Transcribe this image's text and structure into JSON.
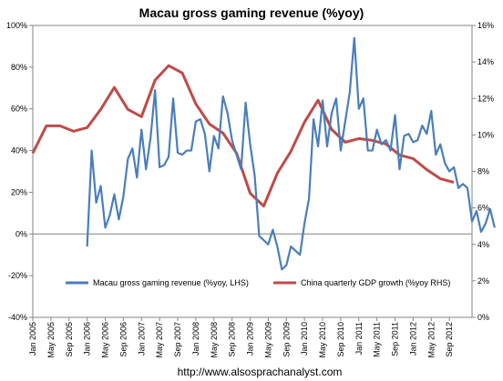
{
  "chart_data": {
    "type": "line",
    "title": "Macau gross gaming revenue (%yoy)",
    "source": "http://www.alsosprachanalyst.com",
    "colors": {
      "gaming": "#4a7ebb",
      "gdp": "#be4b48",
      "zero_line": "#808080"
    },
    "x_tick_labels": [
      "Jan 2005",
      "May 2005",
      "Sep 2005",
      "Jan 2006",
      "May 2006",
      "Sep 2006",
      "Jan 2007",
      "May 2007",
      "Sep 2007",
      "Jan 2008",
      "May 2008",
      "Sep 2008",
      "Jan 2009",
      "May 2009",
      "Sep 2009",
      "Jan 2010",
      "May 2010",
      "Sep 2010",
      "Jan 2011",
      "May 2011",
      "Sep 2011",
      "Jan 2012",
      "May 2012",
      "Sep 2012"
    ],
    "x_range": [
      "Jan 2005",
      "Feb 2013"
    ],
    "y_left": {
      "min": -40,
      "max": 100,
      "tick_labels": [
        "-40%",
        "-20%",
        "0%",
        "20%",
        "40%",
        "60%",
        "80%",
        "100%"
      ],
      "tick_values": [
        -40,
        -20,
        0,
        20,
        40,
        60,
        80,
        100
      ]
    },
    "y_right": {
      "min": 0,
      "max": 16,
      "tick_labels": [
        "0%",
        "2%",
        "4%",
        "6%",
        "8%",
        "10%",
        "12%",
        "14%",
        "16%"
      ],
      "tick_values": [
        0,
        2,
        4,
        6,
        8,
        10,
        12,
        14,
        16
      ]
    },
    "series": [
      {
        "name": "Macau gross gaming revenue (%yoy, LHS)",
        "axis": "left",
        "points": [
          [
            "Jan 2006",
            -6
          ],
          [
            "Feb 2006",
            40
          ],
          [
            "Mar 2006",
            15
          ],
          [
            "Apr 2006",
            23
          ],
          [
            "May 2006",
            3
          ],
          [
            "Jun 2006",
            9
          ],
          [
            "Jul 2006",
            19
          ],
          [
            "Aug 2006",
            7
          ],
          [
            "Sep 2006",
            18
          ],
          [
            "Oct 2006",
            36
          ],
          [
            "Nov 2006",
            41
          ],
          [
            "Dec 2006",
            27
          ],
          [
            "Jan 2007",
            50
          ],
          [
            "Feb 2007",
            31
          ],
          [
            "Mar 2007",
            46
          ],
          [
            "Apr 2007",
            69
          ],
          [
            "May 2007",
            32
          ],
          [
            "Jun 2007",
            33
          ],
          [
            "Jul 2007",
            37
          ],
          [
            "Aug 2007",
            65
          ],
          [
            "Sep 2007",
            39
          ],
          [
            "Oct 2007",
            38
          ],
          [
            "Nov 2007",
            40
          ],
          [
            "Dec 2007",
            40
          ],
          [
            "Jan 2008",
            54
          ],
          [
            "Feb 2008",
            55
          ],
          [
            "Mar 2008",
            48
          ],
          [
            "Apr 2008",
            30
          ],
          [
            "May 2008",
            47
          ],
          [
            "Jun 2008",
            41
          ],
          [
            "Jul 2008",
            66
          ],
          [
            "Aug 2008",
            58
          ],
          [
            "Sep 2008",
            45
          ],
          [
            "Oct 2008",
            38
          ],
          [
            "Nov 2008",
            31
          ],
          [
            "Dec 2008",
            63
          ],
          [
            "Jan 2009",
            43
          ],
          [
            "Feb 2009",
            28
          ],
          [
            "Mar 2009",
            -1
          ],
          [
            "Apr 2009",
            -3
          ],
          [
            "May 2009",
            -5
          ],
          [
            "Jun 2009",
            2
          ],
          [
            "Jul 2009",
            -6
          ],
          [
            "Aug 2009",
            -17
          ],
          [
            "Sep 2009",
            -15
          ],
          [
            "Oct 2009",
            -6
          ],
          [
            "Nov 2009",
            -8
          ],
          [
            "Dec 2009",
            -10
          ],
          [
            "Jan 2010",
            5
          ],
          [
            "Feb 2010",
            17
          ],
          [
            "Mar 2010",
            55
          ],
          [
            "Apr 2010",
            42
          ],
          [
            "May 2010",
            64
          ],
          [
            "Jun 2010",
            42
          ],
          [
            "Jul 2010",
            58
          ],
          [
            "Aug 2010",
            65
          ],
          [
            "Sep 2010",
            40
          ],
          [
            "Oct 2010",
            54
          ],
          [
            "Nov 2010",
            68
          ],
          [
            "Dec 2010",
            94
          ],
          [
            "Jan 2011",
            60
          ],
          [
            "Feb 2011",
            65
          ],
          [
            "Mar 2011",
            40
          ],
          [
            "Apr 2011",
            40
          ],
          [
            "May 2011",
            50
          ],
          [
            "Jun 2011",
            43
          ],
          [
            "Jul 2011",
            45
          ],
          [
            "Aug 2011",
            40
          ],
          [
            "Sep 2011",
            57
          ],
          [
            "Oct 2011",
            31
          ],
          [
            "Nov 2011",
            47
          ],
          [
            "Dec 2011",
            48
          ],
          [
            "Jan 2012",
            44
          ],
          [
            "Feb 2012",
            45
          ],
          [
            "Mar 2012",
            52
          ],
          [
            "Apr 2012",
            48
          ],
          [
            "May 2012",
            59
          ],
          [
            "Jun 2012",
            38
          ],
          [
            "Jul 2012",
            43
          ],
          [
            "Aug 2012",
            34
          ],
          [
            "Sep 2012",
            30
          ],
          [
            "Oct 2012",
            32
          ],
          [
            "Nov 2012",
            22
          ],
          [
            "Dec 2012",
            24
          ],
          [
            "Jan 2013",
            22
          ],
          [
            "Feb 2013",
            6
          ],
          [
            "Mar 2013",
            11
          ],
          [
            "Apr 2013",
            1
          ],
          [
            "May 2013",
            5
          ],
          [
            "Jun 2013",
            12
          ],
          [
            "Jul 2013",
            3
          ]
        ]
      },
      {
        "name": "China quarterly GDP growth (%yoy RHS)",
        "axis": "right",
        "points": [
          [
            "Jan 2005",
            9.0
          ],
          [
            "Apr 2005",
            10.5
          ],
          [
            "Jul 2005",
            10.5
          ],
          [
            "Oct 2005",
            10.2
          ],
          [
            "Jan 2006",
            10.4
          ],
          [
            "Apr 2006",
            11.4
          ],
          [
            "Jul 2006",
            12.6
          ],
          [
            "Oct 2006",
            11.4
          ],
          [
            "Jan 2007",
            11.0
          ],
          [
            "Apr 2007",
            13.0
          ],
          [
            "Jul 2007",
            13.8
          ],
          [
            "Oct 2007",
            13.4
          ],
          [
            "Jan 2008",
            11.7
          ],
          [
            "Apr 2008",
            10.6
          ],
          [
            "Jul 2008",
            10.1
          ],
          [
            "Oct 2008",
            9.0
          ],
          [
            "Jan 2009",
            6.8
          ],
          [
            "Apr 2009",
            6.1
          ],
          [
            "Jul 2009",
            7.9
          ],
          [
            "Oct 2009",
            9.1
          ],
          [
            "Jan 2010",
            10.7
          ],
          [
            "Apr 2010",
            11.9
          ],
          [
            "Jul 2010",
            10.3
          ],
          [
            "Oct 2010",
            9.6
          ],
          [
            "Jan 2011",
            9.8
          ],
          [
            "Apr 2011",
            9.7
          ],
          [
            "Jul 2011",
            9.5
          ],
          [
            "Oct 2011",
            8.9
          ],
          [
            "Jan 2012",
            8.7
          ],
          [
            "Apr 2012",
            8.1
          ],
          [
            "Jul 2012",
            7.6
          ],
          [
            "Oct 2012",
            7.4
          ]
        ]
      }
    ]
  }
}
